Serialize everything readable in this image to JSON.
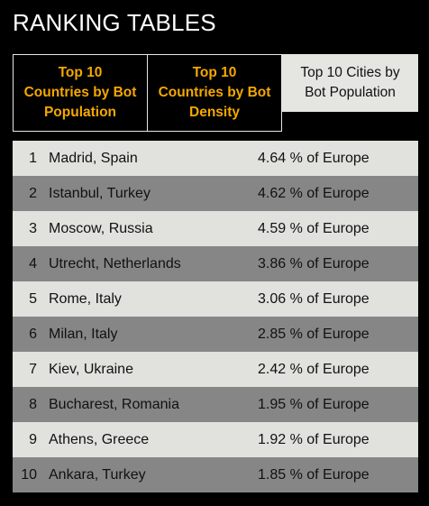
{
  "title": "RANKING TABLES",
  "tabs": [
    {
      "label": "Top 10\nCountries by Bot\nPopulation"
    },
    {
      "label": "Top 10\nCountries by Bot\nDensity"
    },
    {
      "label": "Top 10 Cities by\nBot Population"
    }
  ],
  "rows": [
    {
      "rank": "1",
      "city": "Madrid, Spain",
      "value": "4.64 % of Europe"
    },
    {
      "rank": "2",
      "city": "Istanbul, Turkey",
      "value": "4.62 % of Europe"
    },
    {
      "rank": "3",
      "city": "Moscow, Russia",
      "value": "4.59 % of Europe"
    },
    {
      "rank": "4",
      "city": "Utrecht, Netherlands",
      "value": "3.86 % of Europe"
    },
    {
      "rank": "5",
      "city": "Rome, Italy",
      "value": "3.06 % of Europe"
    },
    {
      "rank": "6",
      "city": "Milan, Italy",
      "value": "2.85 % of Europe"
    },
    {
      "rank": "7",
      "city": "Kiev, Ukraine",
      "value": "2.42 % of Europe"
    },
    {
      "rank": "8",
      "city": "Bucharest, Romania",
      "value": "1.95 % of Europe"
    },
    {
      "rank": "9",
      "city": "Athens, Greece",
      "value": "1.92 % of Europe"
    },
    {
      "rank": "10",
      "city": "Ankara, Turkey",
      "value": "1.85 % of Europe"
    }
  ],
  "colors": {
    "accent": "#f5a800",
    "row_light": "#e1e1dd",
    "row_dark": "#868686",
    "background": "#000000"
  }
}
